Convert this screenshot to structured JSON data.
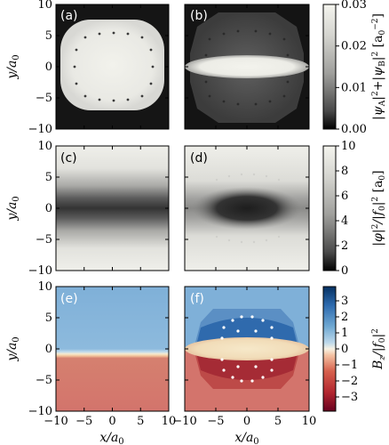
{
  "chart_data": [
    {
      "type": "heatmap",
      "panel": "(a)",
      "x_range": [
        -10,
        10
      ],
      "y_range": [
        -10,
        10
      ],
      "colormap": "greys",
      "clim": [
        0,
        0.03
      ],
      "shape": "rounded square",
      "peak_value": 0.023
    },
    {
      "type": "heatmap",
      "panel": "(b)",
      "x_range": [
        -10,
        10
      ],
      "y_range": [
        -10,
        10
      ],
      "colormap": "greys",
      "clim": [
        0,
        0.03
      ],
      "shape": "flat ellipse inside dim disk",
      "peak_value": 0.028
    },
    {
      "type": "heatmap",
      "panel": "(c)",
      "x_range": [
        -10,
        10
      ],
      "y_range": [
        -10,
        10
      ],
      "colormap": "greys",
      "clim": [
        0,
        10
      ],
      "profile": "horizontal dark stripe at y=0",
      "min_value": 0.3
    },
    {
      "type": "heatmap",
      "panel": "(d)",
      "x_range": [
        -10,
        10
      ],
      "y_range": [
        -10,
        10
      ],
      "colormap": "greys",
      "clim": [
        0,
        10
      ],
      "profile": "dark ellipse at origin",
      "min_value": 0.1
    },
    {
      "type": "heatmap",
      "panel": "(e)",
      "x_range": [
        -10,
        10
      ],
      "y_range": [
        -10,
        10
      ],
      "colormap": "red-blue",
      "clim": [
        -3.5,
        3.5
      ],
      "upper_value": 1.3,
      "lower_value": -1.3,
      "boundary_y": -0.5
    },
    {
      "type": "heatmap",
      "panel": "(f)",
      "x_range": [
        -10,
        10
      ],
      "y_range": [
        -10,
        10
      ],
      "colormap": "red-blue",
      "clim": [
        -3.5,
        3.5
      ],
      "upper_value": 2.5,
      "lower_value": -2.5
    }
  ],
  "panels": {
    "a": "(a)",
    "b": "(b)",
    "c": "(c)",
    "d": "(d)",
    "e": "(e)",
    "f": "(f)"
  },
  "axes": {
    "ylabel_base": "y/a",
    "ylabel_sub": "0",
    "xlabel_base": "x/a",
    "xlabel_sub": "0",
    "y_ticks": [
      "10",
      "5",
      "0",
      "−5",
      "−10"
    ],
    "x_ticks": [
      "−10",
      "−5",
      "0",
      "5",
      "10"
    ]
  },
  "colorbars": {
    "density": {
      "ticks": [
        "0.03",
        "0.02",
        "0.01",
        "0.00"
      ],
      "label": "|ψA|²+|ψB|² [a0⁻²]"
    },
    "phi": {
      "ticks": [
        "10",
        "8",
        "6",
        "4",
        "2",
        "0"
      ],
      "label": "|φ|²/|f0|² [a0]"
    },
    "field": {
      "ticks": [
        "3",
        "2",
        "1",
        "0",
        "−1",
        "−2",
        "−3"
      ],
      "label": "Bz/|f0|²"
    }
  },
  "colors": {
    "blue": "#2f6aad",
    "light_blue": "#7fb0d8",
    "cream": "#f4e6c8",
    "salmon": "#d3746c",
    "red": "#a52b35",
    "dark": "#1e1e1e",
    "light": "#f1f1ec"
  }
}
